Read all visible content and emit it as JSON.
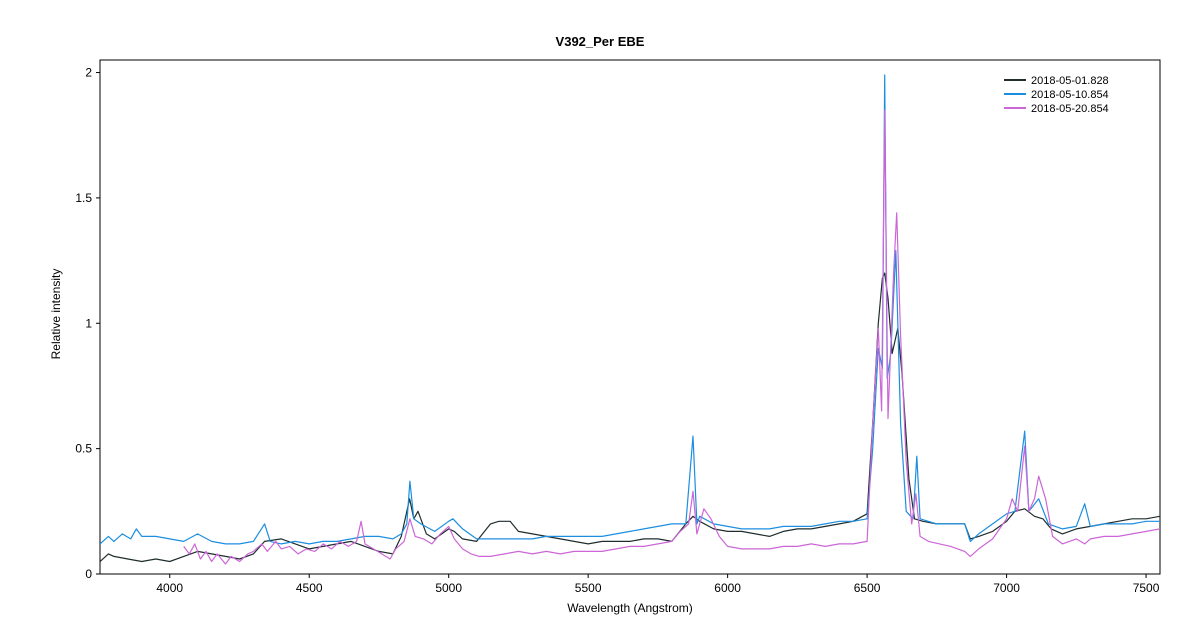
{
  "chart_data": {
    "type": "line",
    "title": "V392_Per   EBE",
    "xlabel": "Wavelength (Angstrom)",
    "ylabel": "Relative intensity",
    "xlim": [
      3750,
      7550
    ],
    "ylim": [
      0,
      2.05
    ],
    "x_ticks": [
      4000,
      4500,
      5000,
      5500,
      6000,
      6500,
      7000,
      7500
    ],
    "y_ticks": [
      0,
      0.5,
      1,
      1.5,
      2
    ],
    "y_tick_labels": [
      "0",
      "0.5",
      "1",
      "1.5",
      "2"
    ],
    "legend_position": "top-right",
    "grid": false,
    "series": [
      {
        "name": "2018-05-01.828",
        "color": "#1f2d2d",
        "points": [
          [
            3750,
            0.05
          ],
          [
            3780,
            0.08
          ],
          [
            3800,
            0.07
          ],
          [
            3850,
            0.06
          ],
          [
            3900,
            0.05
          ],
          [
            3950,
            0.06
          ],
          [
            4000,
            0.05
          ],
          [
            4050,
            0.07
          ],
          [
            4100,
            0.09
          ],
          [
            4150,
            0.08
          ],
          [
            4200,
            0.07
          ],
          [
            4250,
            0.06
          ],
          [
            4300,
            0.08
          ],
          [
            4340,
            0.13
          ],
          [
            4400,
            0.14
          ],
          [
            4450,
            0.12
          ],
          [
            4500,
            0.1
          ],
          [
            4550,
            0.11
          ],
          [
            4600,
            0.12
          ],
          [
            4650,
            0.13
          ],
          [
            4700,
            0.11
          ],
          [
            4750,
            0.09
          ],
          [
            4800,
            0.08
          ],
          [
            4830,
            0.15
          ],
          [
            4860,
            0.3
          ],
          [
            4875,
            0.22
          ],
          [
            4890,
            0.25
          ],
          [
            4920,
            0.16
          ],
          [
            4950,
            0.14
          ],
          [
            5000,
            0.18
          ],
          [
            5020,
            0.17
          ],
          [
            5050,
            0.14
          ],
          [
            5100,
            0.13
          ],
          [
            5150,
            0.2
          ],
          [
            5180,
            0.21
          ],
          [
            5220,
            0.21
          ],
          [
            5250,
            0.17
          ],
          [
            5300,
            0.16
          ],
          [
            5350,
            0.15
          ],
          [
            5400,
            0.14
          ],
          [
            5450,
            0.13
          ],
          [
            5500,
            0.12
          ],
          [
            5550,
            0.13
          ],
          [
            5600,
            0.13
          ],
          [
            5650,
            0.13
          ],
          [
            5700,
            0.14
          ],
          [
            5750,
            0.14
          ],
          [
            5800,
            0.13
          ],
          [
            5850,
            0.2
          ],
          [
            5876,
            0.23
          ],
          [
            5900,
            0.21
          ],
          [
            5950,
            0.18
          ],
          [
            6000,
            0.17
          ],
          [
            6050,
            0.17
          ],
          [
            6100,
            0.16
          ],
          [
            6150,
            0.15
          ],
          [
            6200,
            0.17
          ],
          [
            6250,
            0.18
          ],
          [
            6300,
            0.18
          ],
          [
            6350,
            0.19
          ],
          [
            6400,
            0.2
          ],
          [
            6450,
            0.21
          ],
          [
            6500,
            0.24
          ],
          [
            6520,
            0.6
          ],
          [
            6540,
            1.0
          ],
          [
            6555,
            1.18
          ],
          [
            6563,
            1.2
          ],
          [
            6575,
            1.1
          ],
          [
            6590,
            0.88
          ],
          [
            6610,
            0.98
          ],
          [
            6625,
            0.8
          ],
          [
            6650,
            0.38
          ],
          [
            6670,
            0.22
          ],
          [
            6700,
            0.21
          ],
          [
            6750,
            0.2
          ],
          [
            6800,
            0.2
          ],
          [
            6850,
            0.2
          ],
          [
            6870,
            0.14
          ],
          [
            6900,
            0.15
          ],
          [
            6950,
            0.17
          ],
          [
            7000,
            0.21
          ],
          [
            7030,
            0.25
          ],
          [
            7065,
            0.26
          ],
          [
            7100,
            0.23
          ],
          [
            7130,
            0.22
          ],
          [
            7160,
            0.18
          ],
          [
            7200,
            0.16
          ],
          [
            7250,
            0.18
          ],
          [
            7300,
            0.19
          ],
          [
            7350,
            0.2
          ],
          [
            7400,
            0.21
          ],
          [
            7450,
            0.22
          ],
          [
            7500,
            0.22
          ],
          [
            7550,
            0.23
          ]
        ]
      },
      {
        "name": "2018-05-10.854",
        "color": "#1c8ee0",
        "points": [
          [
            3750,
            0.12
          ],
          [
            3780,
            0.15
          ],
          [
            3800,
            0.13
          ],
          [
            3830,
            0.16
          ],
          [
            3860,
            0.14
          ],
          [
            3880,
            0.18
          ],
          [
            3900,
            0.15
          ],
          [
            3950,
            0.15
          ],
          [
            4000,
            0.14
          ],
          [
            4050,
            0.13
          ],
          [
            4100,
            0.16
          ],
          [
            4150,
            0.13
          ],
          [
            4200,
            0.12
          ],
          [
            4250,
            0.12
          ],
          [
            4300,
            0.13
          ],
          [
            4340,
            0.2
          ],
          [
            4360,
            0.13
          ],
          [
            4400,
            0.12
          ],
          [
            4450,
            0.13
          ],
          [
            4500,
            0.12
          ],
          [
            4550,
            0.13
          ],
          [
            4600,
            0.13
          ],
          [
            4650,
            0.14
          ],
          [
            4700,
            0.15
          ],
          [
            4750,
            0.15
          ],
          [
            4800,
            0.14
          ],
          [
            4830,
            0.16
          ],
          [
            4850,
            0.2
          ],
          [
            4861,
            0.37
          ],
          [
            4875,
            0.22
          ],
          [
            4900,
            0.2
          ],
          [
            4950,
            0.17
          ],
          [
            5000,
            0.21
          ],
          [
            5015,
            0.22
          ],
          [
            5050,
            0.18
          ],
          [
            5100,
            0.14
          ],
          [
            5150,
            0.14
          ],
          [
            5200,
            0.14
          ],
          [
            5250,
            0.14
          ],
          [
            5300,
            0.14
          ],
          [
            5350,
            0.15
          ],
          [
            5400,
            0.15
          ],
          [
            5450,
            0.15
          ],
          [
            5500,
            0.15
          ],
          [
            5550,
            0.15
          ],
          [
            5600,
            0.16
          ],
          [
            5650,
            0.17
          ],
          [
            5700,
            0.18
          ],
          [
            5750,
            0.19
          ],
          [
            5800,
            0.2
          ],
          [
            5850,
            0.2
          ],
          [
            5876,
            0.55
          ],
          [
            5890,
            0.2
          ],
          [
            5900,
            0.23
          ],
          [
            5950,
            0.2
          ],
          [
            6000,
            0.19
          ],
          [
            6050,
            0.18
          ],
          [
            6100,
            0.18
          ],
          [
            6150,
            0.18
          ],
          [
            6200,
            0.19
          ],
          [
            6250,
            0.19
          ],
          [
            6300,
            0.19
          ],
          [
            6350,
            0.2
          ],
          [
            6400,
            0.21
          ],
          [
            6450,
            0.21
          ],
          [
            6500,
            0.22
          ],
          [
            6520,
            0.5
          ],
          [
            6540,
            0.9
          ],
          [
            6555,
            0.82
          ],
          [
            6563,
            1.99
          ],
          [
            6572,
            0.78
          ],
          [
            6585,
            0.88
          ],
          [
            6603,
            1.29
          ],
          [
            6620,
            0.6
          ],
          [
            6640,
            0.25
          ],
          [
            6665,
            0.22
          ],
          [
            6678,
            0.47
          ],
          [
            6690,
            0.22
          ],
          [
            6750,
            0.2
          ],
          [
            6800,
            0.2
          ],
          [
            6850,
            0.2
          ],
          [
            6870,
            0.13
          ],
          [
            6900,
            0.16
          ],
          [
            6950,
            0.2
          ],
          [
            7000,
            0.24
          ],
          [
            7030,
            0.25
          ],
          [
            7065,
            0.57
          ],
          [
            7080,
            0.25
          ],
          [
            7115,
            0.3
          ],
          [
            7150,
            0.2
          ],
          [
            7200,
            0.18
          ],
          [
            7250,
            0.19
          ],
          [
            7280,
            0.28
          ],
          [
            7300,
            0.19
          ],
          [
            7350,
            0.2
          ],
          [
            7400,
            0.2
          ],
          [
            7450,
            0.2
          ],
          [
            7500,
            0.21
          ],
          [
            7550,
            0.21
          ]
        ]
      },
      {
        "name": "2018-05-20.854",
        "color": "#cc66d6",
        "points": [
          [
            4050,
            0.11
          ],
          [
            4070,
            0.08
          ],
          [
            4090,
            0.12
          ],
          [
            4110,
            0.06
          ],
          [
            4130,
            0.09
          ],
          [
            4150,
            0.05
          ],
          [
            4170,
            0.08
          ],
          [
            4200,
            0.04
          ],
          [
            4220,
            0.07
          ],
          [
            4250,
            0.05
          ],
          [
            4280,
            0.08
          ],
          [
            4300,
            0.09
          ],
          [
            4330,
            0.12
          ],
          [
            4350,
            0.09
          ],
          [
            4380,
            0.13
          ],
          [
            4400,
            0.1
          ],
          [
            4430,
            0.11
          ],
          [
            4460,
            0.08
          ],
          [
            4490,
            0.1
          ],
          [
            4520,
            0.09
          ],
          [
            4550,
            0.12
          ],
          [
            4580,
            0.1
          ],
          [
            4610,
            0.13
          ],
          [
            4640,
            0.11
          ],
          [
            4670,
            0.13
          ],
          [
            4686,
            0.21
          ],
          [
            4700,
            0.12
          ],
          [
            4730,
            0.1
          ],
          [
            4760,
            0.08
          ],
          [
            4790,
            0.06
          ],
          [
            4810,
            0.1
          ],
          [
            4840,
            0.13
          ],
          [
            4861,
            0.22
          ],
          [
            4880,
            0.15
          ],
          [
            4910,
            0.14
          ],
          [
            4940,
            0.12
          ],
          [
            4970,
            0.16
          ],
          [
            5000,
            0.19
          ],
          [
            5020,
            0.14
          ],
          [
            5050,
            0.1
          ],
          [
            5080,
            0.08
          ],
          [
            5110,
            0.07
          ],
          [
            5150,
            0.07
          ],
          [
            5200,
            0.08
          ],
          [
            5250,
            0.09
          ],
          [
            5300,
            0.08
          ],
          [
            5350,
            0.09
          ],
          [
            5400,
            0.08
          ],
          [
            5450,
            0.09
          ],
          [
            5500,
            0.09
          ],
          [
            5550,
            0.09
          ],
          [
            5600,
            0.1
          ],
          [
            5650,
            0.11
          ],
          [
            5700,
            0.11
          ],
          [
            5750,
            0.12
          ],
          [
            5800,
            0.13
          ],
          [
            5830,
            0.17
          ],
          [
            5860,
            0.2
          ],
          [
            5876,
            0.33
          ],
          [
            5890,
            0.16
          ],
          [
            5915,
            0.26
          ],
          [
            5940,
            0.22
          ],
          [
            5970,
            0.15
          ],
          [
            6000,
            0.11
          ],
          [
            6050,
            0.1
          ],
          [
            6100,
            0.1
          ],
          [
            6150,
            0.1
          ],
          [
            6200,
            0.11
          ],
          [
            6250,
            0.11
          ],
          [
            6300,
            0.12
          ],
          [
            6350,
            0.11
          ],
          [
            6400,
            0.12
          ],
          [
            6450,
            0.12
          ],
          [
            6500,
            0.13
          ],
          [
            6520,
            0.6
          ],
          [
            6540,
            0.98
          ],
          [
            6552,
            0.65
          ],
          [
            6563,
            1.85
          ],
          [
            6575,
            0.62
          ],
          [
            6595,
            1.2
          ],
          [
            6606,
            1.44
          ],
          [
            6620,
            0.95
          ],
          [
            6640,
            0.45
          ],
          [
            6660,
            0.2
          ],
          [
            6675,
            0.32
          ],
          [
            6690,
            0.15
          ],
          [
            6720,
            0.13
          ],
          [
            6760,
            0.12
          ],
          [
            6800,
            0.11
          ],
          [
            6850,
            0.09
          ],
          [
            6870,
            0.07
          ],
          [
            6900,
            0.1
          ],
          [
            6950,
            0.14
          ],
          [
            7000,
            0.22
          ],
          [
            7020,
            0.3
          ],
          [
            7040,
            0.25
          ],
          [
            7065,
            0.51
          ],
          [
            7080,
            0.25
          ],
          [
            7100,
            0.3
          ],
          [
            7115,
            0.39
          ],
          [
            7140,
            0.3
          ],
          [
            7165,
            0.15
          ],
          [
            7200,
            0.12
          ],
          [
            7250,
            0.14
          ],
          [
            7280,
            0.12
          ],
          [
            7300,
            0.14
          ],
          [
            7350,
            0.15
          ],
          [
            7400,
            0.15
          ],
          [
            7450,
            0.16
          ],
          [
            7500,
            0.17
          ],
          [
            7550,
            0.18
          ]
        ]
      }
    ]
  }
}
